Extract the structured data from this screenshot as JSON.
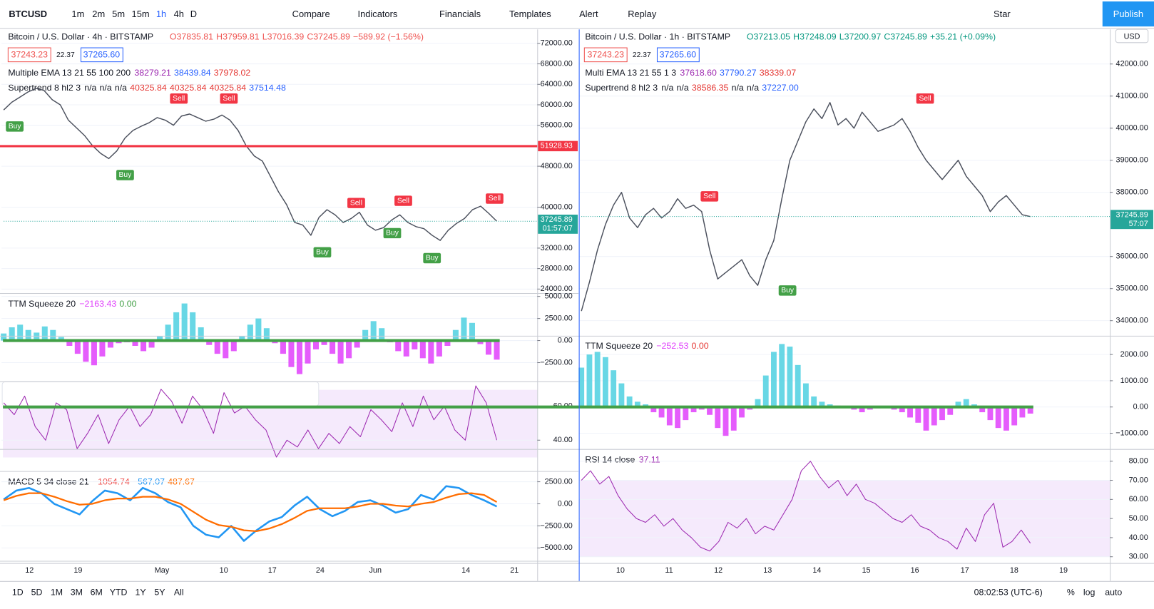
{
  "toolbar": {
    "symbol": "BTCUSD",
    "intervals": [
      "1m",
      "2m",
      "5m",
      "15m",
      "1h",
      "4h",
      "D"
    ],
    "buttons": [
      "Compare",
      "Indicators",
      "Financials",
      "Templates",
      "Alert",
      "Replay"
    ],
    "star": "Star",
    "publish": "Publish"
  },
  "left": {
    "title": "Bitcoin / U.S. Dollar · 4h · BITSTAMP",
    "ohlc": [
      "O37835.81",
      "H37959.81",
      "L37016.39",
      "C37245.89",
      "−589.92 (−1.56%)"
    ],
    "bid": "37243.23",
    "spread": "22.37",
    "ask": "37265.60",
    "ema": {
      "label": "Multiple EMA 13 21 55 100 200",
      "values": [
        "38279.21",
        "38439.84",
        "37978.02"
      ]
    },
    "supertrend": {
      "label": "Supertrend 8 hl2 3",
      "values": [
        "n/a",
        "n/a",
        "n/a",
        "40325.84",
        "40325.84",
        "40325.84",
        "37514.48"
      ]
    },
    "signals": [
      "Buy",
      "Sell",
      "Sell",
      "Buy",
      "Buy",
      "Buy",
      "Sell",
      "Sell",
      "Sell",
      "Buy"
    ],
    "price": {
      "ylim": [
        23280,
        74730
      ],
      "yticks": [
        {
          "value": 72000,
          "label": "72000.00"
        },
        {
          "value": 68000,
          "label": "68000.00"
        },
        {
          "value": 64000,
          "label": "64000.00"
        },
        {
          "value": 60000,
          "label": "60000.00"
        },
        {
          "value": 56000,
          "label": "56000.00"
        },
        {
          "value": 48000,
          "label": "48000.00"
        },
        {
          "value": 40000,
          "label": "40000.00"
        },
        {
          "value": 32000,
          "label": "32000.00"
        },
        {
          "value": 28000,
          "label": "28000.00"
        },
        {
          "value": 24000,
          "label": "24000.00"
        }
      ],
      "close": [
        59000,
        60500,
        61500,
        62500,
        63200,
        62800,
        61000,
        60000,
        57000,
        55500,
        54000,
        52000,
        50500,
        49500,
        51000,
        53500,
        55000,
        55800,
        56500,
        57500,
        57000,
        56000,
        57800,
        58200,
        57500,
        56800,
        57200,
        58000,
        57000,
        55000,
        52000,
        50000,
        49000,
        46000,
        43000,
        40500,
        37000,
        36500,
        34500,
        38000,
        39500,
        38500,
        37000,
        37800,
        39000,
        36500,
        35500,
        36000,
        37500,
        38500,
        37000,
        36200,
        35800,
        34500,
        33500,
        35500,
        36800,
        37800,
        39500,
        40200,
        38800,
        37245
      ],
      "level": 51928.93,
      "last": 37245.89,
      "countdown": "01:57:07"
    },
    "ttm": {
      "label": "TTM Squeeze 20",
      "values": [
        "−2163.43",
        "0.00"
      ],
      "ylim": [
        -4580,
        5250
      ],
      "yticks": [
        {
          "value": 5000,
          "label": "5000.00"
        },
        {
          "value": 2500,
          "label": "2500.00"
        },
        {
          "value": 0,
          "label": "0.00"
        },
        {
          "value": -2500,
          "label": "−2500.00"
        }
      ],
      "hist": [
        800,
        1500,
        1800,
        1200,
        900,
        1600,
        1200,
        400,
        -600,
        -1500,
        -2400,
        -2800,
        -1800,
        -800,
        -300,
        -200,
        -600,
        -1200,
        -800,
        500,
        1800,
        3200,
        4200,
        3200,
        1500,
        -500,
        -1500,
        -2000,
        -1200,
        500,
        1800,
        2500,
        1400,
        -300,
        -1500,
        -3000,
        -3800,
        -2600,
        -1000,
        -500,
        -1500,
        -2600,
        -2000,
        -800,
        1200,
        2200,
        1400,
        -200,
        -1200,
        -1800,
        -1000,
        -2000,
        -2600,
        -1800,
        -600,
        1200,
        2600,
        2000,
        -400,
        -1600,
        -2163
      ]
    },
    "rsi": {
      "ylim": [
        22,
        74
      ],
      "yticks": [
        {
          "value": 60,
          "label": "60.00"
        },
        {
          "value": 40,
          "label": "40.00"
        }
      ],
      "values": [
        62,
        55,
        66,
        48,
        40,
        62,
        58,
        35,
        44,
        55,
        38,
        52,
        60,
        48,
        55,
        70,
        63,
        50,
        66,
        58,
        44,
        68,
        56,
        60,
        52,
        46,
        30,
        40,
        36,
        46,
        35,
        44,
        38,
        48,
        42,
        58,
        52,
        45,
        62,
        48,
        66,
        52,
        60,
        46,
        40,
        72,
        62,
        40
      ]
    },
    "macd": {
      "label": "MACD 5 34 close 21",
      "values": [
        "−1054.74",
        "−567.07",
        "487.67"
      ],
      "ylim": [
        -6417,
        3583
      ],
      "yticks": [
        {
          "value": 2500,
          "label": "2500.00"
        },
        {
          "value": 0,
          "label": "0.00"
        },
        {
          "value": -2500,
          "label": "−2500.00"
        },
        {
          "value": -5000,
          "label": "−5000.00"
        }
      ],
      "macd_line": [
        500,
        1500,
        1800,
        1200,
        0,
        -600,
        -1200,
        300,
        1500,
        1200,
        400,
        1800,
        1200,
        200,
        -400,
        -2500,
        -3500,
        -3800,
        -2500,
        -4200,
        -3000,
        -2000,
        -1500,
        -200,
        800,
        -600,
        -1400,
        -800,
        200,
        400,
        -200,
        -1000,
        -600,
        1000,
        500,
        2000,
        1800,
        1000,
        400,
        -300
      ],
      "signal_line": [
        400,
        900,
        1200,
        1200,
        800,
        300,
        -100,
        0,
        400,
        600,
        600,
        800,
        800,
        500,
        0,
        -900,
        -1800,
        -2400,
        -2600,
        -3000,
        -3100,
        -2800,
        -2300,
        -1600,
        -800,
        -500,
        -500,
        -500,
        -300,
        0,
        0,
        -200,
        -300,
        0,
        200,
        700,
        1100,
        1200,
        1000,
        200
      ]
    },
    "time_axis": [
      "12",
      "19",
      "May",
      "10",
      "17",
      "24",
      "Jun",
      "14",
      "21"
    ]
  },
  "right": {
    "title": "Bitcoin / U.S. Dollar · 1h · BITSTAMP",
    "ohlc": [
      "O37213.05",
      "H37248.09",
      "L37200.97",
      "C37245.89",
      "+35.21 (+0.09%)"
    ],
    "bid": "37243.23",
    "spread": "22.37",
    "ask": "37265.60",
    "currency": "USD",
    "ema": {
      "label": "Multi EMA 13 21 55 1 3",
      "values": [
        "37618.60",
        "37790.27",
        "38339.07"
      ]
    },
    "supertrend": {
      "label": "Supertrend 8 hl2 3",
      "values": [
        "n/a",
        "n/a",
        "38586.35",
        "n/a",
        "n/a",
        "37227.00"
      ]
    },
    "signals": [
      "Sell",
      "Buy",
      "Sell"
    ],
    "price": {
      "ylim": [
        33541,
        43078
      ],
      "yticks": [
        {
          "value": 42000,
          "label": "42000.00"
        },
        {
          "value": 41000,
          "label": "41000.00"
        },
        {
          "value": 40000,
          "label": "40000.00"
        },
        {
          "value": 39000,
          "label": "39000.00"
        },
        {
          "value": 38000,
          "label": "38000.00"
        },
        {
          "value": 36000,
          "label": "36000.00"
        },
        {
          "value": 35000,
          "label": "35000.00"
        },
        {
          "value": 34000,
          "label": "34000.00"
        }
      ],
      "close": [
        34300,
        35200,
        36200,
        37000,
        37600,
        38000,
        37200,
        36900,
        37300,
        37500,
        37200,
        37400,
        37800,
        37500,
        37600,
        37400,
        36200,
        35300,
        35500,
        35700,
        35900,
        35400,
        35100,
        35900,
        36500,
        37800,
        39000,
        39600,
        40200,
        40600,
        40300,
        40800,
        40100,
        40300,
        40000,
        40500,
        40200,
        39900,
        40000,
        40100,
        40300,
        39900,
        39400,
        39000,
        38700,
        38400,
        38700,
        39000,
        38500,
        38200,
        37900,
        37400,
        37700,
        37900,
        37600,
        37300,
        37245
      ],
      "last": 37245.89,
      "countdown": "57:07"
    },
    "ttm": {
      "label": "TTM Squeeze 20",
      "values": [
        "−252.53",
        "0.00"
      ],
      "ylim": [
        -1588,
        2672
      ],
      "yticks": [
        {
          "value": 2000,
          "label": "2000.00"
        },
        {
          "value": 1000,
          "label": "1000.00"
        },
        {
          "value": 0,
          "label": "0.00"
        },
        {
          "value": -1000,
          "label": "−1000.00"
        }
      ],
      "hist": [
        1500,
        2000,
        2100,
        1900,
        1400,
        900,
        400,
        200,
        100,
        -200,
        -400,
        -700,
        -800,
        -500,
        -200,
        -100,
        -300,
        -800,
        -1100,
        -900,
        -400,
        -100,
        300,
        1200,
        2100,
        2400,
        2300,
        1600,
        900,
        400,
        200,
        100,
        50,
        0,
        -100,
        -200,
        -100,
        -50,
        0,
        -100,
        -200,
        -400,
        -600,
        -900,
        -700,
        -500,
        -300,
        200,
        300,
        100,
        -200,
        -500,
        -800,
        -900,
        -700,
        -400,
        -252
      ]
    },
    "rsi": {
      "label": "RSI 14 close",
      "value": "37.11",
      "ylim": [
        26.9,
        85.8
      ],
      "yticks": [
        {
          "value": 80,
          "label": "80.00"
        },
        {
          "value": 70,
          "label": "70.00"
        },
        {
          "value": 60,
          "label": "60.00"
        },
        {
          "value": 50,
          "label": "50.00"
        },
        {
          "value": 40,
          "label": "40.00"
        },
        {
          "value": 30,
          "label": "30.00"
        }
      ],
      "values": [
        70,
        75,
        68,
        72,
        62,
        55,
        50,
        48,
        52,
        46,
        50,
        44,
        40,
        35,
        33,
        38,
        48,
        45,
        50,
        42,
        46,
        44,
        52,
        60,
        75,
        80,
        72,
        66,
        70,
        62,
        68,
        60,
        58,
        54,
        50,
        48,
        52,
        46,
        44,
        40,
        38,
        34,
        45,
        38,
        52,
        58,
        35,
        38,
        44,
        37.11
      ]
    },
    "time_axis": [
      "10",
      "11",
      "12",
      "13",
      "14",
      "15",
      "16",
      "17",
      "18",
      "19"
    ]
  },
  "bottom": {
    "ranges": [
      "1D",
      "5D",
      "1M",
      "3M",
      "6M",
      "YTD",
      "1Y",
      "5Y",
      "All"
    ],
    "clock": "08:02:53 (UTC-6)",
    "percent": "%",
    "log": "log",
    "auto": "auto"
  }
}
